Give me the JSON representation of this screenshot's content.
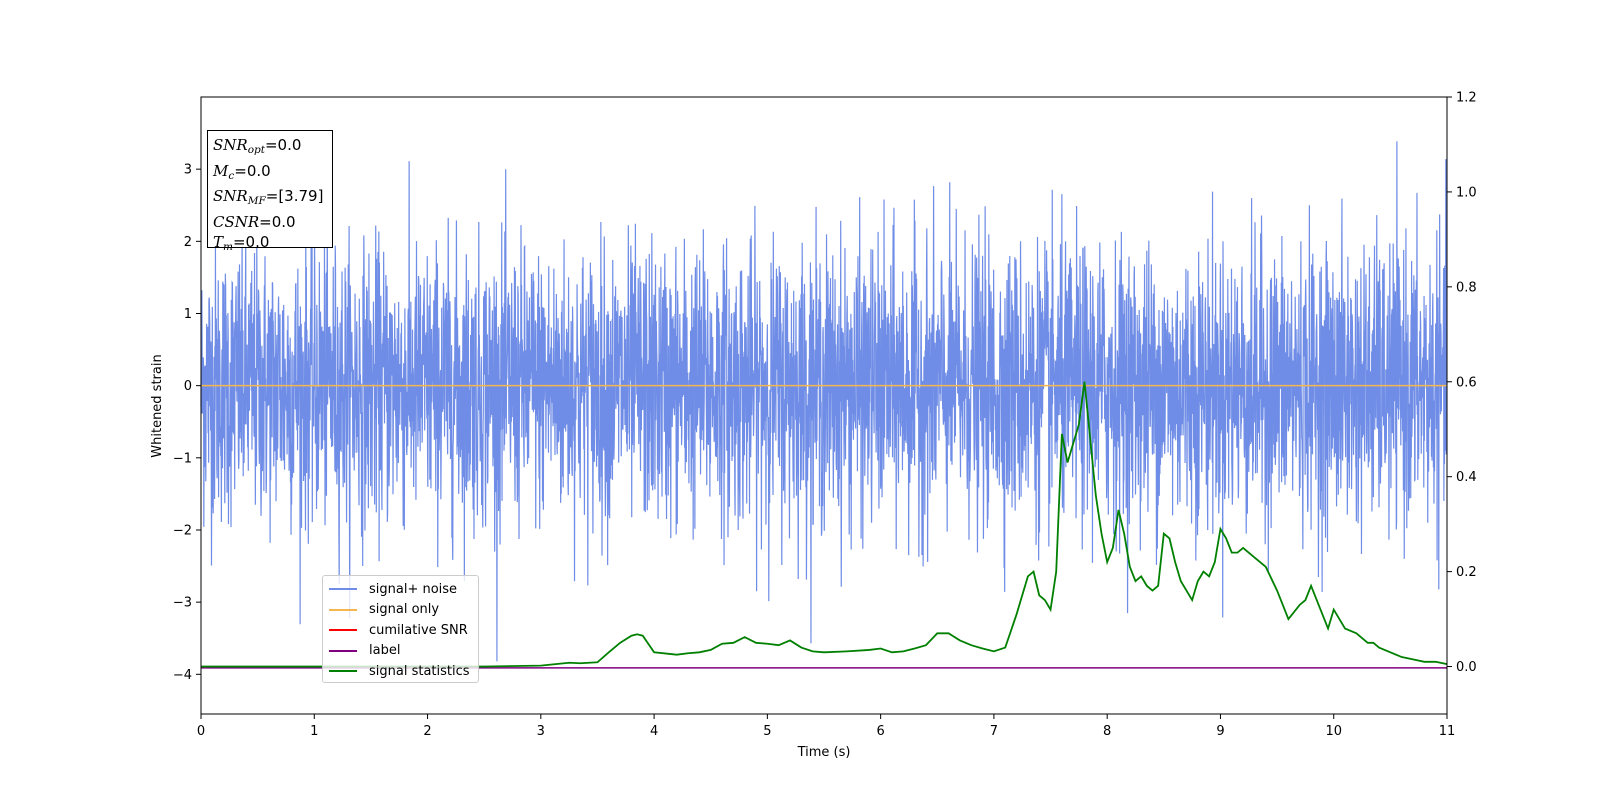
{
  "chart_data": {
    "type": "line",
    "xlabel": "Time (s)",
    "ylabel": "Whitened strain",
    "xlim": [
      0,
      11
    ],
    "ylim": [
      -4.55,
      4.0
    ],
    "y2lim": [
      -0.1,
      1.2
    ],
    "xticks": [
      "0",
      "1",
      "2",
      "3",
      "4",
      "5",
      "6",
      "7",
      "8",
      "9",
      "10",
      "11"
    ],
    "yticks": [
      "−4",
      "−3",
      "−2",
      "−1",
      "0",
      "1",
      "2",
      "3"
    ],
    "y2ticks": [
      "0.0",
      "0.2",
      "0.4",
      "0.6",
      "0.8",
      "1.0",
      "1.2"
    ],
    "colors": {
      "signal_noise": "#6f8de6",
      "signal_only": "#f5b74d",
      "cumulative_snr": "#ff0000",
      "label": "#800080",
      "signal_statistics": "#008000"
    },
    "noise_envelope": {
      "band_low": -1.9,
      "band_high": 1.9,
      "description_values_max": 3.6,
      "description_values_min": -4.0
    },
    "series": [
      {
        "name": "signal+ noise",
        "axis": "left",
        "x": [
          0,
          11
        ],
        "y": [
          0,
          0
        ]
      },
      {
        "name": "signal only",
        "axis": "left",
        "x": [
          0,
          11
        ],
        "y": [
          0,
          0
        ]
      },
      {
        "name": "cumilative SNR",
        "axis": "right",
        "x": [],
        "y": []
      },
      {
        "name": "label",
        "axis": "left",
        "x": [
          0,
          11
        ],
        "y": [
          -3.91,
          -3.91
        ]
      },
      {
        "name": "signal statistics",
        "axis": "right",
        "x": [
          0,
          0.5,
          1.0,
          1.5,
          2.0,
          2.5,
          3.0,
          3.25,
          3.35,
          3.5,
          3.6,
          3.7,
          3.8,
          3.85,
          3.9,
          4.0,
          4.2,
          4.3,
          4.4,
          4.5,
          4.6,
          4.7,
          4.8,
          4.9,
          5.0,
          5.1,
          5.2,
          5.3,
          5.4,
          5.5,
          5.7,
          5.9,
          6.0,
          6.1,
          6.2,
          6.3,
          6.4,
          6.5,
          6.6,
          6.7,
          6.8,
          6.9,
          7.0,
          7.1,
          7.2,
          7.3,
          7.35,
          7.4,
          7.45,
          7.5,
          7.55,
          7.6,
          7.65,
          7.7,
          7.75,
          7.8,
          7.85,
          7.9,
          7.95,
          8.0,
          8.05,
          8.1,
          8.15,
          8.2,
          8.25,
          8.3,
          8.35,
          8.4,
          8.45,
          8.5,
          8.55,
          8.6,
          8.65,
          8.7,
          8.75,
          8.8,
          8.85,
          8.9,
          8.95,
          9.0,
          9.05,
          9.1,
          9.15,
          9.2,
          9.3,
          9.4,
          9.5,
          9.6,
          9.7,
          9.75,
          9.8,
          9.9,
          9.95,
          10.0,
          10.1,
          10.2,
          10.3,
          10.35,
          10.4,
          10.5,
          10.6,
          10.7,
          10.8,
          10.9,
          11.0
        ],
        "y": [
          0.0,
          0.0,
          0.0,
          0.0,
          0.0,
          0.0,
          0.002,
          0.008,
          0.007,
          0.009,
          0.03,
          0.05,
          0.065,
          0.068,
          0.065,
          0.03,
          0.025,
          0.028,
          0.03,
          0.035,
          0.048,
          0.05,
          0.062,
          0.05,
          0.048,
          0.045,
          0.055,
          0.04,
          0.032,
          0.03,
          0.032,
          0.035,
          0.038,
          0.03,
          0.032,
          0.038,
          0.045,
          0.07,
          0.07,
          0.055,
          0.045,
          0.038,
          0.032,
          0.04,
          0.11,
          0.19,
          0.2,
          0.15,
          0.14,
          0.12,
          0.2,
          0.49,
          0.43,
          0.47,
          0.51,
          0.6,
          0.48,
          0.36,
          0.28,
          0.22,
          0.25,
          0.33,
          0.28,
          0.21,
          0.18,
          0.19,
          0.17,
          0.16,
          0.17,
          0.28,
          0.27,
          0.22,
          0.18,
          0.16,
          0.14,
          0.18,
          0.2,
          0.19,
          0.22,
          0.29,
          0.27,
          0.24,
          0.24,
          0.25,
          0.23,
          0.21,
          0.16,
          0.1,
          0.13,
          0.14,
          0.17,
          0.11,
          0.08,
          0.12,
          0.08,
          0.07,
          0.05,
          0.05,
          0.04,
          0.03,
          0.02,
          0.015,
          0.01,
          0.01,
          0.005
        ]
      }
    ]
  },
  "annotation": {
    "snr_opt": {
      "base": "SNR",
      "sub": "opt",
      "value": "=0.0"
    },
    "mc": {
      "base": "M",
      "sub": "c",
      "value": "=0.0"
    },
    "snr_mf": {
      "base": "SNR",
      "sub": "MF",
      "value": "=[3.79]"
    },
    "csnr": {
      "base": "CSNR",
      "value": "=0.0"
    },
    "tm": {
      "base": "T",
      "sub": "m",
      "value": "=0.0"
    }
  },
  "legend": [
    {
      "label": "signal+ noise",
      "color": "#6f8de6"
    },
    {
      "label": "signal only",
      "color": "#f5b74d"
    },
    {
      "label": "cumilative SNR",
      "color": "#ff0000"
    },
    {
      "label": "label",
      "color": "#800080"
    },
    {
      "label": "signal statistics",
      "color": "#008000"
    }
  ]
}
